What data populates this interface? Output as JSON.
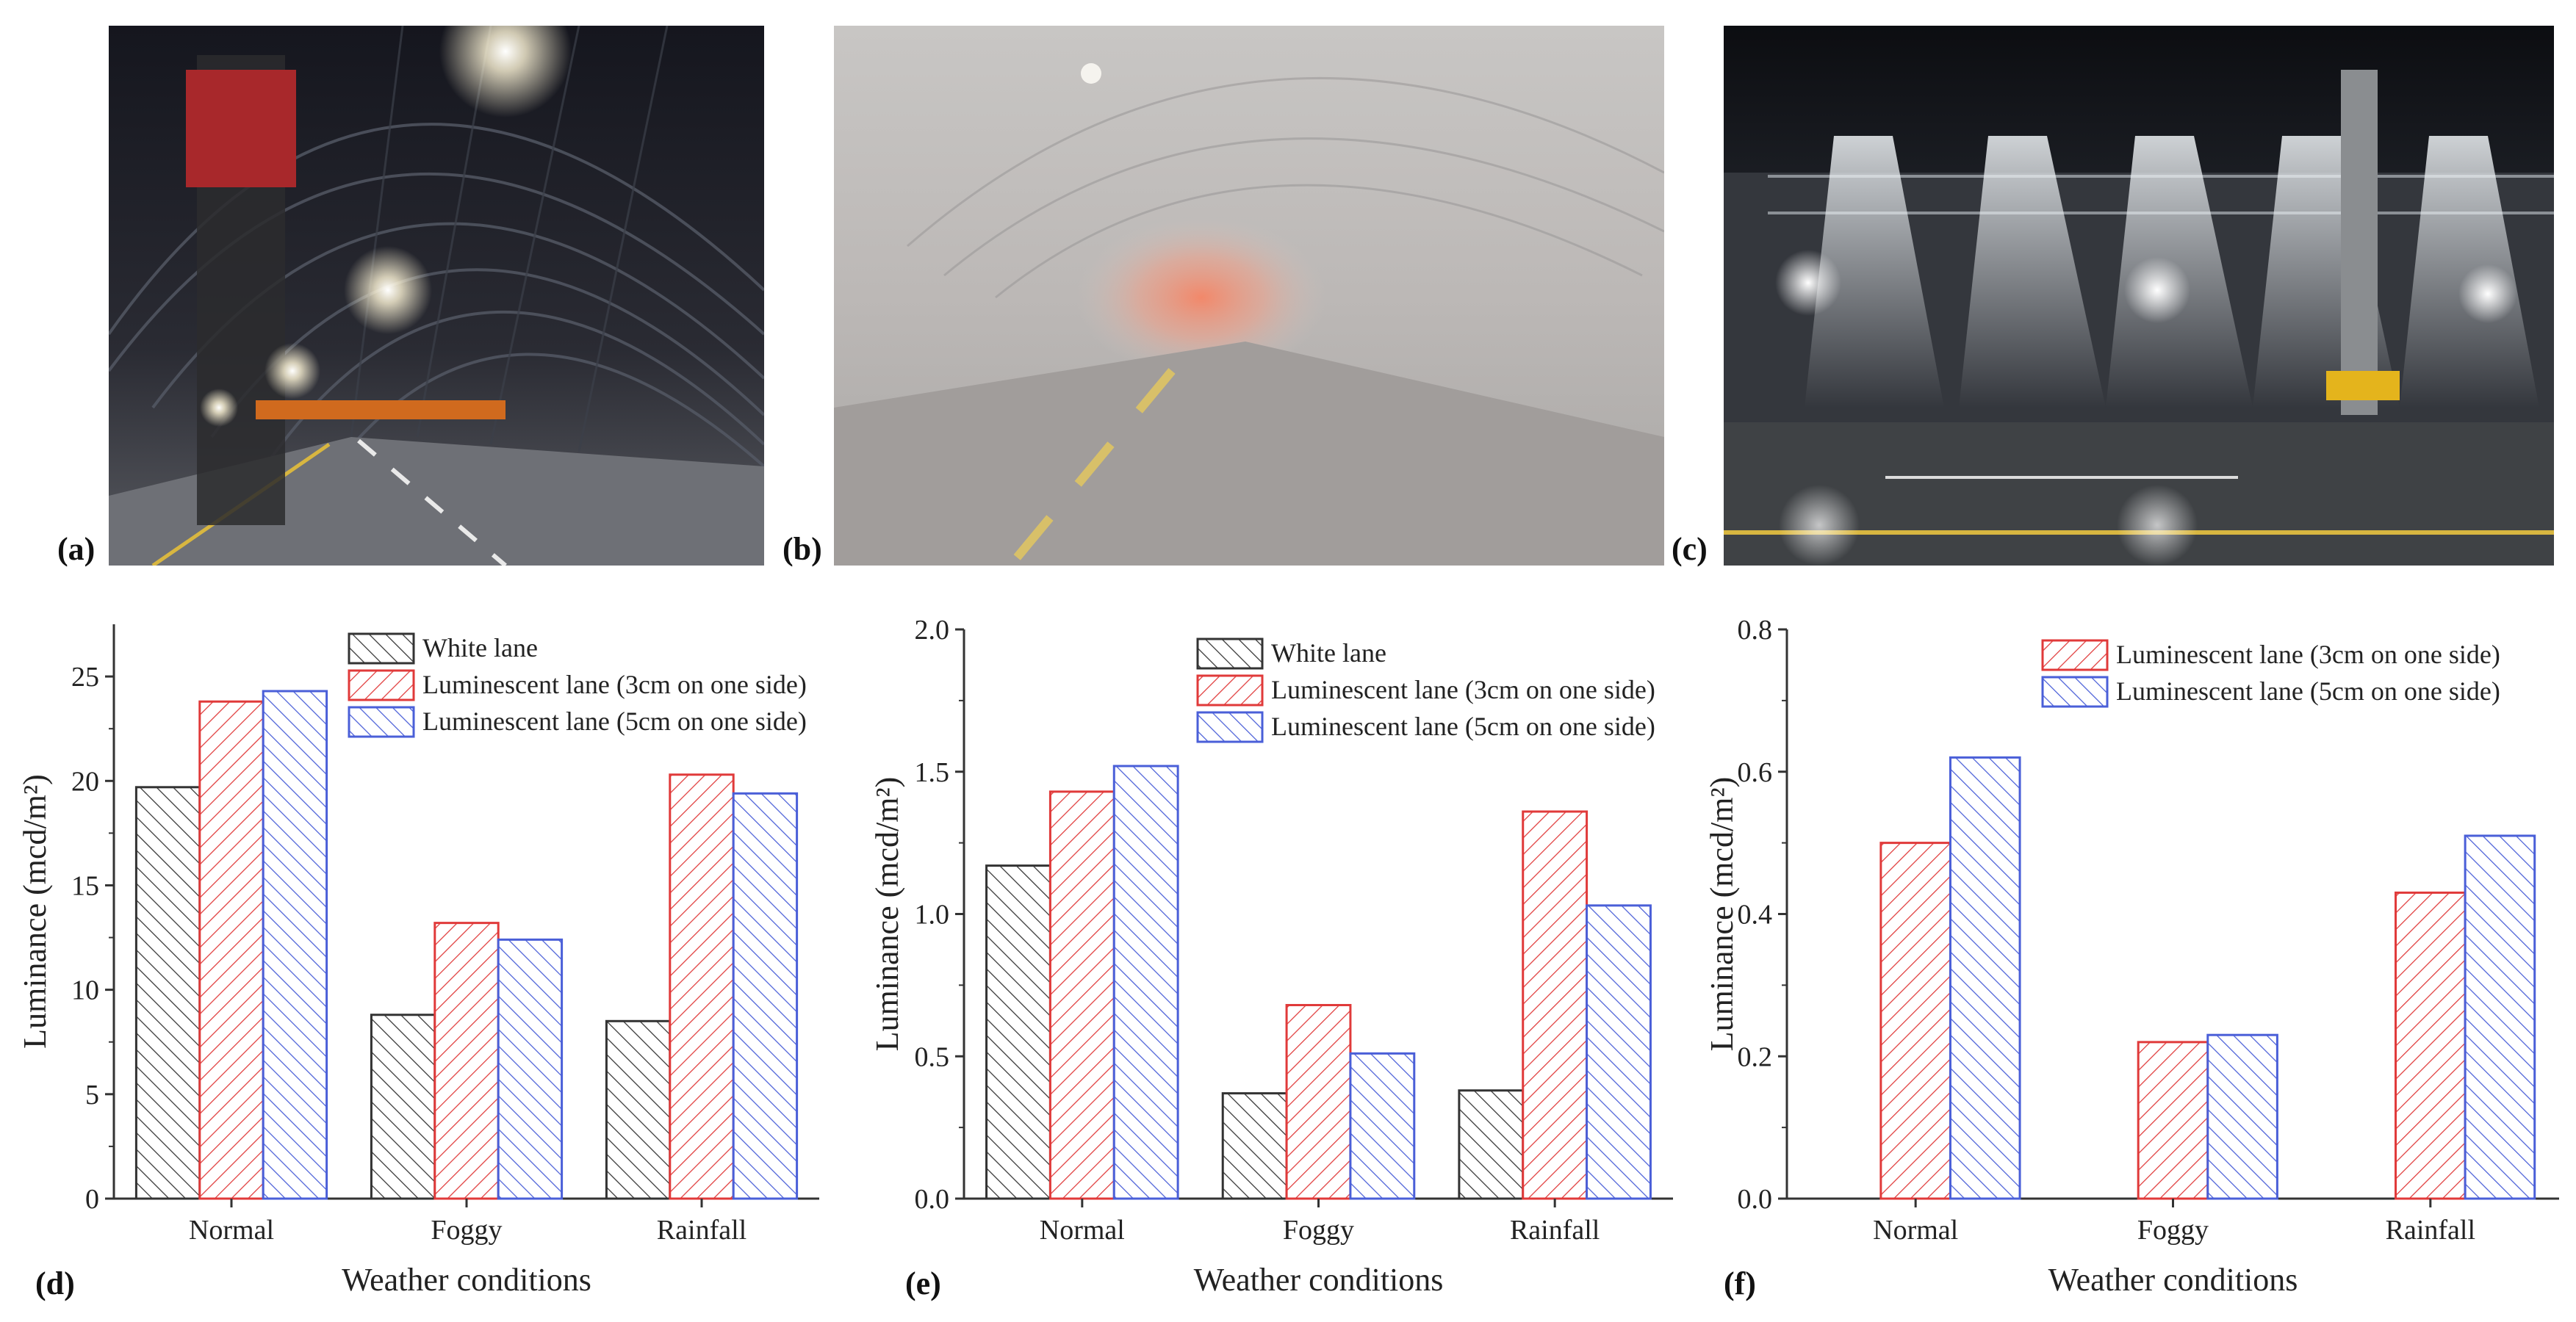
{
  "panel_tags": {
    "a": "(a)",
    "b": "(b)",
    "c": "(c)",
    "d": "(d)",
    "e": "(e)",
    "f": "(f)"
  },
  "photos": [
    {
      "label": "(a)",
      "scene": "night tunnel with lamps and lift platform"
    },
    {
      "label": "(b)",
      "scene": "fog-filled tunnel"
    },
    {
      "label": "(c)",
      "scene": "rain simulation sprays in tunnel"
    }
  ],
  "colors": {
    "white_lane": "#333333",
    "lum_3cm": "#e03a3a",
    "lum_5cm": "#4a5fd8"
  },
  "chart_data": [
    {
      "type": "bar",
      "panel": "(d)",
      "categories": [
        "Normal",
        "Foggy",
        "Rainfall"
      ],
      "xlabel": "Weather conditions",
      "ylabel": "Luminance (mcd/m²)",
      "ylim": [
        0,
        27.5
      ],
      "yticks": [
        "0",
        "5",
        "10",
        "15",
        "20",
        "25"
      ],
      "ytick_values": [
        0,
        5,
        10,
        15,
        20,
        25
      ],
      "legend_position": "top-center",
      "series": [
        {
          "name": "White lane",
          "values": [
            19.7,
            8.8,
            8.5
          ],
          "color": "#333333",
          "hatch": "forward"
        },
        {
          "name": "Luminescent lane (3cm on one side)",
          "values": [
            23.8,
            13.2,
            20.3
          ],
          "color": "#e03a3a",
          "hatch": "backward"
        },
        {
          "name": "Luminescent lane (5cm on one side)",
          "values": [
            24.3,
            12.4,
            19.4
          ],
          "color": "#4a5fd8",
          "hatch": "forward"
        }
      ]
    },
    {
      "type": "bar",
      "panel": "(e)",
      "categories": [
        "Normal",
        "Foggy",
        "Rainfall"
      ],
      "xlabel": "Weather conditions",
      "ylabel": "Luminance (mcd/m²)",
      "ylim": [
        0,
        2.0
      ],
      "yticks": [
        "0.0",
        "0.5",
        "1.0",
        "1.5",
        "2.0"
      ],
      "ytick_values": [
        0,
        0.5,
        1.0,
        1.5,
        2.0
      ],
      "legend_position": "top-center",
      "series": [
        {
          "name": "White lane",
          "values": [
            1.17,
            0.37,
            0.38
          ],
          "color": "#333333",
          "hatch": "forward"
        },
        {
          "name": "Luminescent lane (3cm on one side)",
          "values": [
            1.43,
            0.68,
            1.36
          ],
          "color": "#e03a3a",
          "hatch": "backward"
        },
        {
          "name": "Luminescent lane (5cm on one side)",
          "values": [
            1.52,
            0.51,
            1.03
          ],
          "color": "#4a5fd8",
          "hatch": "forward"
        }
      ]
    },
    {
      "type": "bar",
      "panel": "(f)",
      "categories": [
        "Normal",
        "Foggy",
        "Rainfall"
      ],
      "xlabel": "Weather conditions",
      "ylabel": "Luminance (mcd/m²)",
      "ylim": [
        0,
        0.8
      ],
      "yticks": [
        "0.0",
        "0.2",
        "0.4",
        "0.6",
        "0.8"
      ],
      "ytick_values": [
        0,
        0.2,
        0.4,
        0.6,
        0.8
      ],
      "legend_position": "top-right",
      "slots": 3,
      "slot_offset": 1,
      "series": [
        {
          "name": "Luminescent lane (3cm on one side)",
          "values": [
            0.5,
            0.22,
            0.43
          ],
          "color": "#e03a3a",
          "hatch": "backward"
        },
        {
          "name": "Luminescent lane (5cm on one side)",
          "values": [
            0.62,
            0.23,
            0.51
          ],
          "color": "#4a5fd8",
          "hatch": "forward"
        }
      ]
    }
  ]
}
